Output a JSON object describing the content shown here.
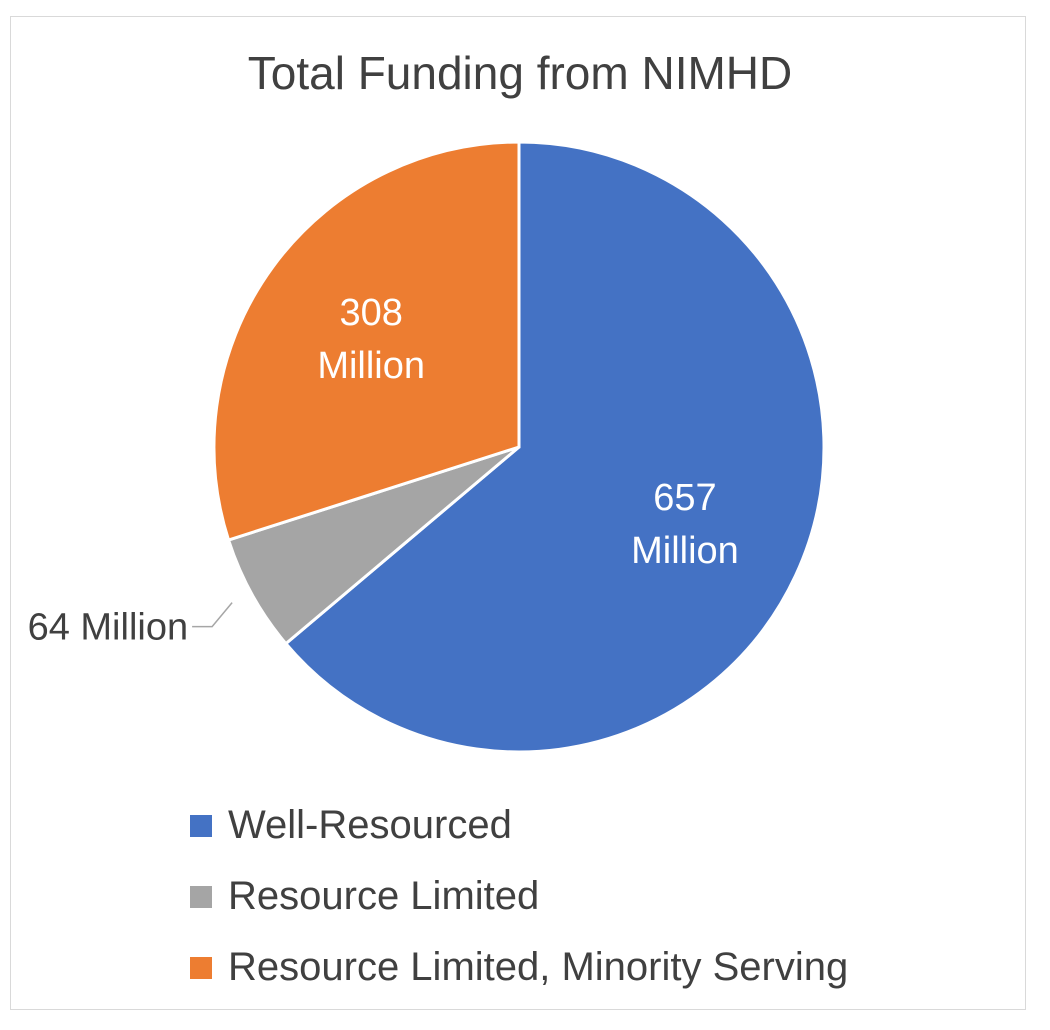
{
  "chart_data": {
    "type": "pie",
    "title": "Total Funding from NIMHD",
    "slices": [
      {
        "name": "Well-Resourced",
        "value": 657,
        "label": [
          "657",
          "Million"
        ],
        "color": "#4472C4"
      },
      {
        "name": "Resource Limited",
        "value": 64,
        "label": [
          "64 Million"
        ],
        "color": "#A5A5A5"
      },
      {
        "name": "Resource Limited, Minority Serving",
        "value": 308,
        "label": [
          "308",
          "Million"
        ],
        "color": "#ED7D31"
      }
    ],
    "legend_position": "bottom"
  }
}
